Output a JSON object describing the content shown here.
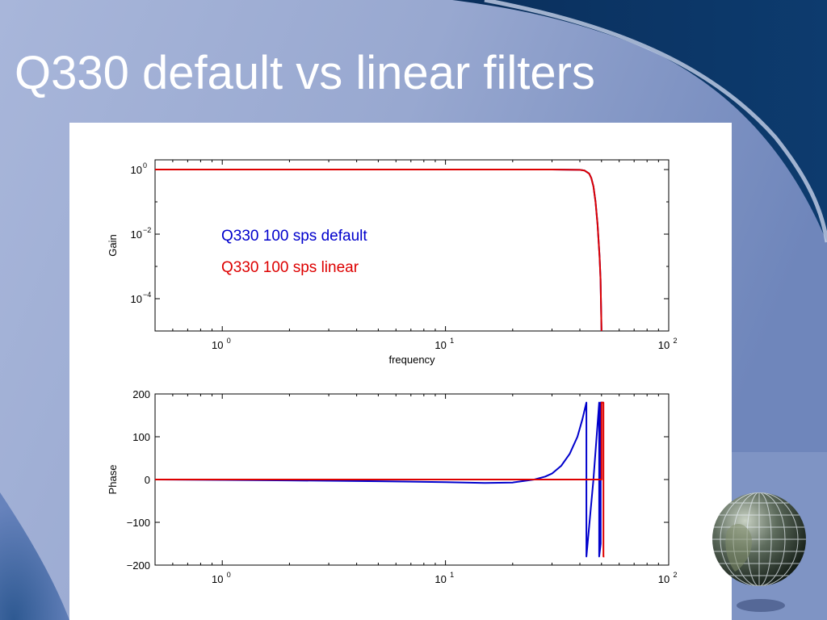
{
  "slide": {
    "title": "Q330 default vs linear filters",
    "colors": {
      "background_light": "#a4b2d6",
      "background_dark": "#0b3563",
      "title": "#ffffff"
    },
    "decorations": [
      "globe-icon"
    ]
  },
  "chart_data": [
    {
      "type": "line",
      "title": "",
      "xlabel": "frequency",
      "ylabel": "Gain",
      "xscale": "log",
      "yscale": "log",
      "xlim": [
        0.5,
        100
      ],
      "ylim": [
        1e-05,
        2
      ],
      "xticks": [
        1,
        10,
        100
      ],
      "xtick_labels": [
        {
          "base": "10",
          "exp": "0"
        },
        {
          "base": "10",
          "exp": "1"
        },
        {
          "base": "10",
          "exp": "2"
        }
      ],
      "yticks": [
        0.0001,
        0.01,
        1
      ],
      "ytick_labels": [
        {
          "base": "10",
          "exp": "−4"
        },
        {
          "base": "10",
          "exp": "−2"
        },
        {
          "base": "10",
          "exp": "0"
        }
      ],
      "grid": false,
      "annotations": [
        {
          "text": "Q330 100 sps default",
          "color": "#0000cc"
        },
        {
          "text": "Q330 100 sps linear",
          "color": "#dd0000"
        }
      ],
      "series": [
        {
          "color": "#0000cc",
          "x": [
            0.5,
            1,
            10,
            30,
            40,
            42,
            44,
            45,
            46,
            47,
            48,
            49,
            49.5,
            50
          ],
          "y": [
            1,
            1,
            1,
            1,
            0.98,
            0.93,
            0.75,
            0.55,
            0.3,
            0.1,
            0.02,
            0.002,
            0.0004,
            1e-05
          ]
        },
        {
          "color": "#dd0000",
          "x": [
            0.5,
            1,
            10,
            30,
            40,
            42,
            44,
            45,
            46,
            47,
            48,
            49,
            49.5,
            50
          ],
          "y": [
            1,
            1,
            1,
            1,
            0.98,
            0.93,
            0.75,
            0.55,
            0.3,
            0.1,
            0.02,
            0.002,
            0.0004,
            1e-05
          ]
        }
      ]
    },
    {
      "type": "line",
      "title": "",
      "xlabel": "",
      "ylabel": "Phase",
      "xscale": "log",
      "xlim": [
        0.5,
        100
      ],
      "ylim": [
        -200,
        200
      ],
      "xticks": [
        1,
        10,
        100
      ],
      "xtick_labels": [
        {
          "base": "10",
          "exp": "0"
        },
        {
          "base": "10",
          "exp": "1"
        },
        {
          "base": "10",
          "exp": "2"
        }
      ],
      "yticks": [
        200,
        100,
        0,
        -100,
        -200
      ],
      "ytick_labels": [
        "200",
        "100",
        "0",
        "−100",
        "−200"
      ],
      "grid": false,
      "series": [
        {
          "color": "#0000cc",
          "x": [
            0.5,
            1,
            2,
            5,
            10,
            15,
            20,
            25,
            28,
            30,
            33,
            36,
            39,
            41,
            42.8,
            42.8,
            46,
            48.8,
            48.8,
            49.6,
            49.6,
            50,
            50.5
          ],
          "y": [
            0,
            -1,
            -2,
            -4,
            -6,
            -8,
            -7,
            0,
            7,
            14,
            32,
            60,
            100,
            140,
            180,
            -180,
            0,
            180,
            -180,
            -150,
            180,
            180,
            180
          ]
        },
        {
          "color": "#dd0000",
          "x": [
            0.5,
            1,
            10,
            30,
            49,
            50,
            50,
            51,
            51,
            51.5
          ],
          "y": [
            0,
            0,
            0,
            0,
            0,
            0,
            180,
            180,
            -180,
            -180
          ]
        }
      ]
    }
  ]
}
